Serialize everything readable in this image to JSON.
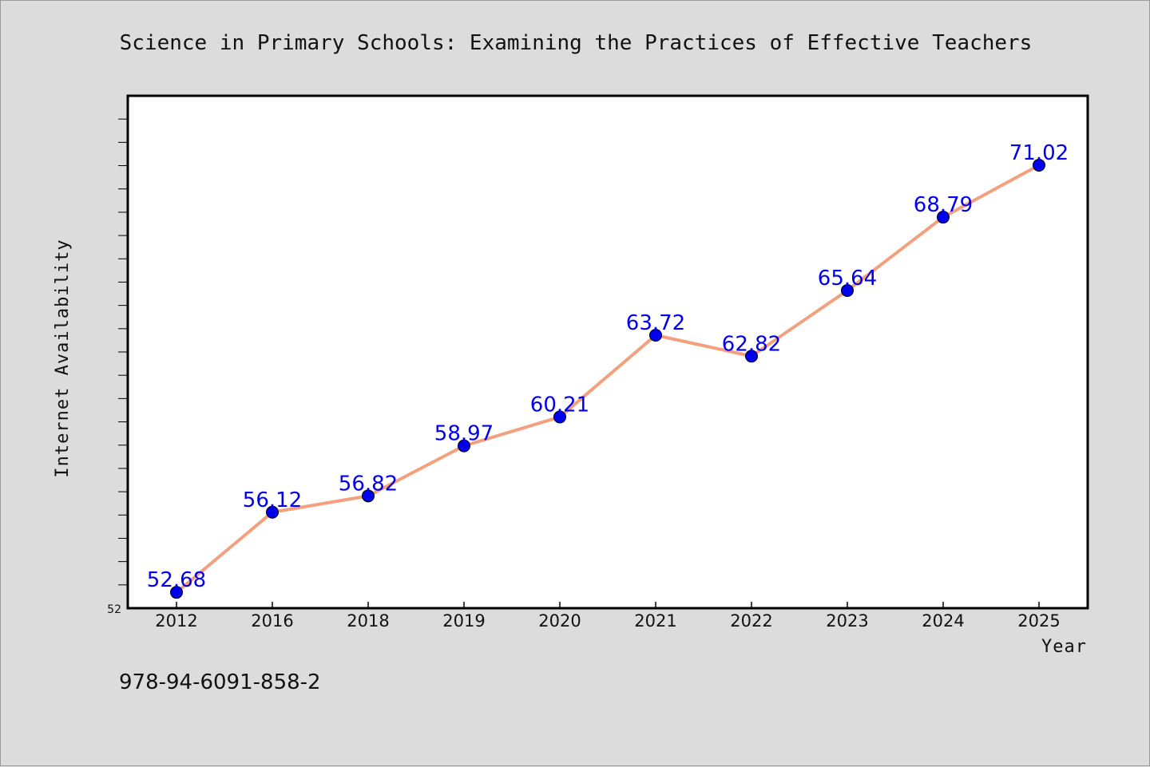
{
  "chart_data": {
    "type": "line",
    "title": "Science in Primary Schools: Examining the Practices of Effective Teachers",
    "xlabel": "Year",
    "ylabel": "Internet Availability",
    "categories": [
      "2012",
      "2016",
      "2018",
      "2019",
      "2020",
      "2021",
      "2022",
      "2023",
      "2024",
      "2025"
    ],
    "series": [
      {
        "values": [
          52.68,
          56.12,
          56.82,
          58.97,
          60.21,
          63.72,
          62.82,
          65.64,
          68.79,
          71.02
        ],
        "labels": [
          "52.68",
          "56.12",
          "56.82",
          "58.97",
          "60.21",
          "63.72",
          "62.82",
          "65.64",
          "68.79",
          "71.02"
        ],
        "line_color": "#f4a07e",
        "marker_color": "#0000ee",
        "label_color": "#0000ee"
      }
    ],
    "ylim": [
      52,
      74
    ],
    "ytick_labels": [
      "52"
    ],
    "ytick_step": 1,
    "grid": false,
    "legend": "none"
  },
  "footer": {
    "isbn": "978-94-6091-858-2"
  },
  "colors": {
    "background": "#dcdcdc",
    "plot_background": "#ffffff",
    "axis": "#000000"
  }
}
